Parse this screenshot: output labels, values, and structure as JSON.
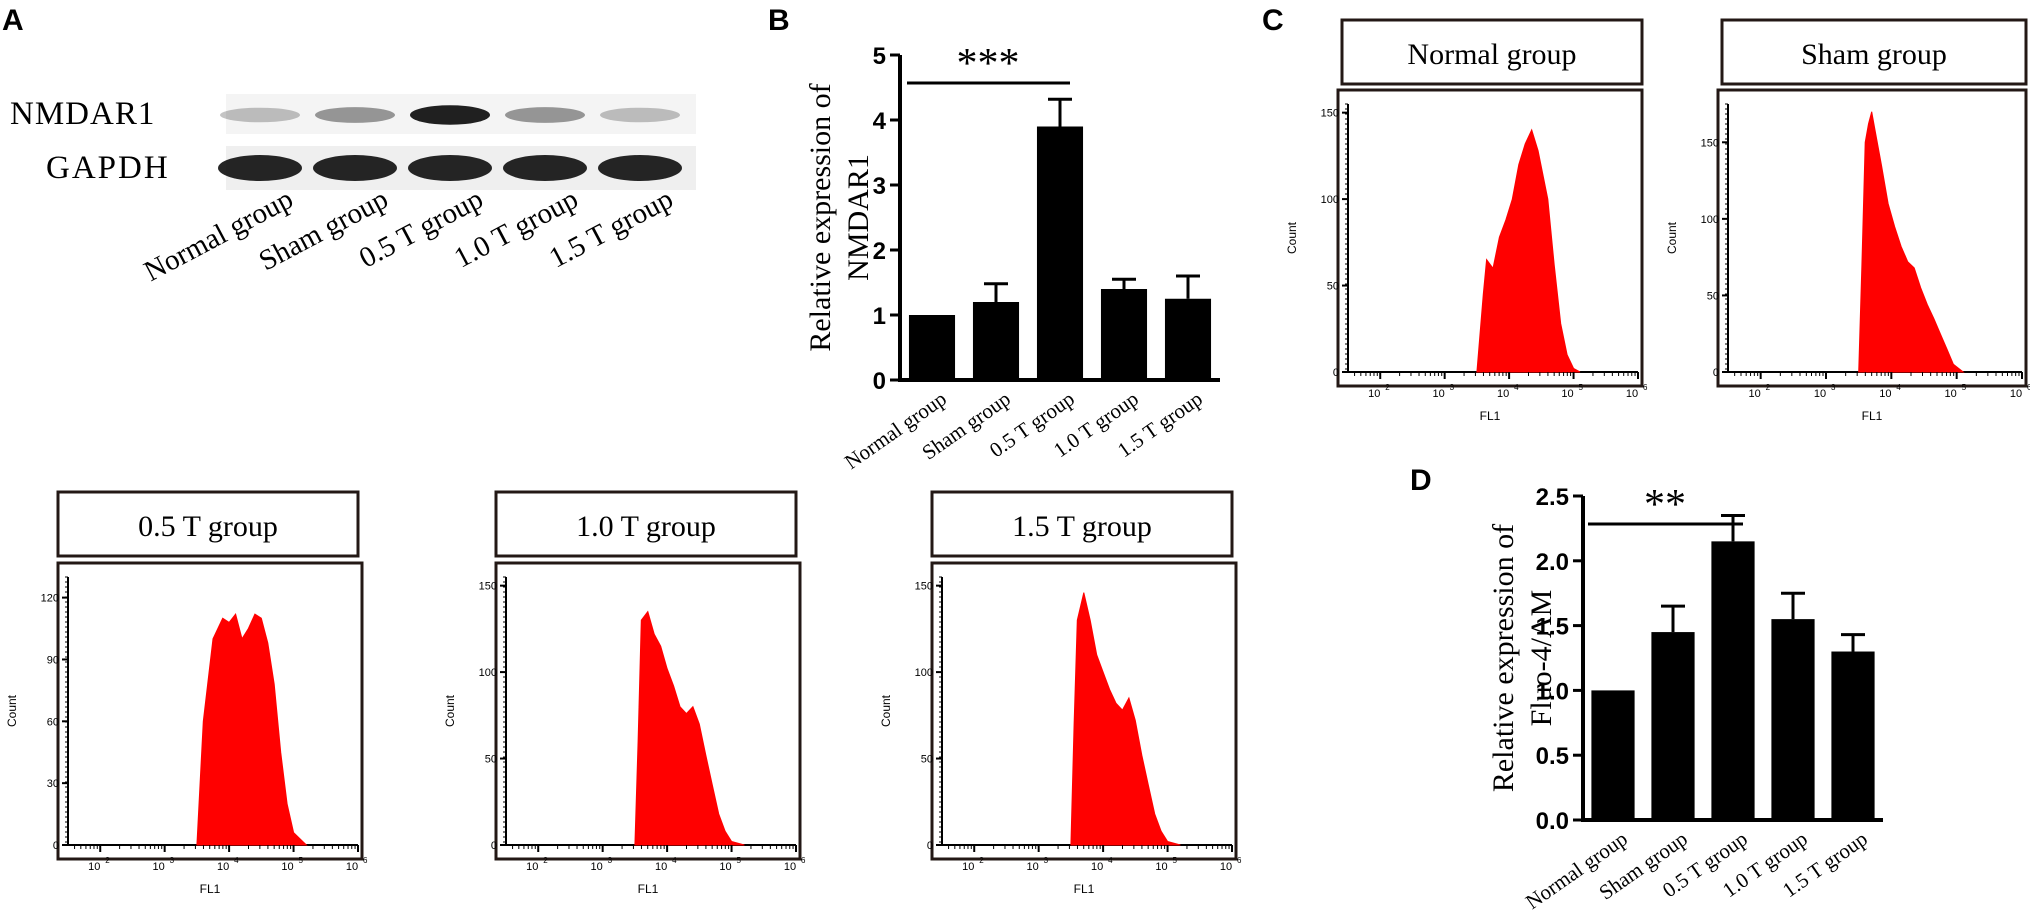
{
  "panels": {
    "A": {
      "letter": "A"
    },
    "B": {
      "letter": "B"
    },
    "C": {
      "letter": "C"
    },
    "D": {
      "letter": "D"
    }
  },
  "western_blot": {
    "rows": [
      "NMDAR1",
      "GAPDH"
    ],
    "lanes": [
      "Normal group",
      "Sham group",
      "0.5 T group",
      "1.0 T group",
      "1.5 T group"
    ],
    "nmdar1_band_intensity": [
      0.1,
      0.3,
      0.9,
      0.3,
      0.1
    ],
    "gapdh_band_intensity": [
      1.0,
      1.0,
      1.0,
      1.0,
      1.0
    ]
  },
  "flow": {
    "xlabel": "FL1",
    "ylabel": "Count",
    "xtick_exponents": [
      "2",
      "3",
      "4",
      "5",
      "6"
    ],
    "xtick_base": "10"
  },
  "chart_data": [
    {
      "id": "B",
      "type": "bar",
      "title": "",
      "xlabel": "",
      "ylabel_lines": [
        "Relative expression of",
        "NMDAR1"
      ],
      "categories": [
        "Normal group",
        "Sham group",
        "0.5 T group",
        "1.0 T group",
        "1.5 T group"
      ],
      "values": [
        1.0,
        1.2,
        3.9,
        1.4,
        1.25
      ],
      "errors": [
        0.0,
        0.28,
        0.42,
        0.15,
        0.35
      ],
      "ylim": [
        0,
        5
      ],
      "yticks": [
        "0",
        "1",
        "2",
        "3",
        "4",
        "5"
      ],
      "significance": {
        "from": 0,
        "to": 2,
        "label": "***"
      }
    },
    {
      "id": "D",
      "type": "bar",
      "title": "",
      "xlabel": "",
      "ylabel_lines": [
        "Relative expression of",
        "Fluo-4/AM"
      ],
      "categories": [
        "Normal group",
        "Sham group",
        "0.5 T group",
        "1.0 T group",
        "1.5 T group"
      ],
      "values": [
        1.0,
        1.45,
        2.15,
        1.55,
        1.3
      ],
      "errors": [
        0.0,
        0.2,
        0.2,
        0.2,
        0.13
      ],
      "ylim": [
        0,
        2.5
      ],
      "yticks": [
        "0.0",
        "0.5",
        "1.0",
        "1.5",
        "2.0",
        "2.5"
      ],
      "significance": {
        "from": 0,
        "to": 2,
        "label": "**"
      }
    },
    {
      "id": "hist-normal",
      "type": "area",
      "title": "Normal group",
      "xlabel": "FL1",
      "ylabel": "Count",
      "xlim_log10": [
        1.5,
        6
      ],
      "ylim": [
        0,
        155
      ],
      "yticks": [
        "0",
        "50",
        "100",
        "150"
      ],
      "x": [
        3.5,
        3.6,
        3.65,
        3.75,
        3.85,
        3.95,
        4.05,
        4.15,
        4.25,
        4.35,
        4.45,
        4.6,
        4.7,
        4.8,
        4.9,
        5.0,
        5.1
      ],
      "y": [
        0,
        45,
        65,
        60,
        78,
        88,
        100,
        120,
        132,
        140,
        128,
        100,
        62,
        28,
        10,
        2,
        0
      ]
    },
    {
      "id": "hist-sham",
      "type": "area",
      "title": "Sham group",
      "xlabel": "FL1",
      "ylabel": "Count",
      "xlim_log10": [
        1.5,
        6
      ],
      "ylim": [
        0,
        175
      ],
      "yticks": [
        "0",
        "50",
        "100",
        "150"
      ],
      "x": [
        3.5,
        3.55,
        3.6,
        3.65,
        3.7,
        3.75,
        3.85,
        3.95,
        4.05,
        4.15,
        4.25,
        4.35,
        4.45,
        4.55,
        4.65,
        4.75,
        4.85,
        4.95,
        5.1
      ],
      "y": [
        0,
        70,
        150,
        162,
        170,
        158,
        135,
        110,
        95,
        82,
        72,
        68,
        55,
        44,
        35,
        25,
        15,
        5,
        0
      ]
    },
    {
      "id": "hist-05t",
      "type": "area",
      "title": "0.5 T group",
      "xlabel": "FL1",
      "ylabel": "Count",
      "xlim_log10": [
        1.5,
        6
      ],
      "ylim": [
        0,
        130
      ],
      "yticks": [
        "0",
        "30",
        "60",
        "90",
        "120"
      ],
      "x": [
        3.5,
        3.6,
        3.75,
        3.9,
        4.0,
        4.1,
        4.2,
        4.3,
        4.4,
        4.5,
        4.6,
        4.7,
        4.8,
        4.9,
        5.0,
        5.2
      ],
      "y": [
        0,
        60,
        100,
        110,
        108,
        112,
        100,
        105,
        112,
        110,
        98,
        78,
        45,
        20,
        6,
        0
      ]
    },
    {
      "id": "hist-10t",
      "type": "area",
      "title": "1.0 T group",
      "xlabel": "FL1",
      "ylabel": "Count",
      "xlim_log10": [
        1.5,
        6
      ],
      "ylim": [
        0,
        155
      ],
      "yticks": [
        "0",
        "50",
        "100",
        "150"
      ],
      "x": [
        3.5,
        3.55,
        3.6,
        3.7,
        3.8,
        3.9,
        4.0,
        4.1,
        4.2,
        4.3,
        4.4,
        4.5,
        4.6,
        4.7,
        4.8,
        4.9,
        5.0,
        5.2
      ],
      "y": [
        0,
        60,
        130,
        135,
        122,
        115,
        102,
        92,
        80,
        76,
        80,
        70,
        52,
        35,
        18,
        8,
        2,
        0
      ]
    },
    {
      "id": "hist-15t",
      "type": "area",
      "title": "1.5 T group",
      "xlabel": "FL1",
      "ylabel": "Count",
      "xlim_log10": [
        1.5,
        6
      ],
      "ylim": [
        0,
        155
      ],
      "yticks": [
        "0",
        "50",
        "100",
        "150"
      ],
      "x": [
        3.5,
        3.55,
        3.6,
        3.7,
        3.8,
        3.9,
        4.0,
        4.1,
        4.2,
        4.3,
        4.4,
        4.5,
        4.6,
        4.7,
        4.8,
        4.9,
        5.0,
        5.2
      ],
      "y": [
        0,
        70,
        130,
        146,
        130,
        110,
        100,
        90,
        82,
        78,
        85,
        72,
        52,
        35,
        18,
        8,
        2,
        0
      ]
    }
  ],
  "colors": {
    "histogram_fill": "#ff0000",
    "bar_fill": "#000000",
    "axis": "#000000",
    "frame": "#231815"
  }
}
